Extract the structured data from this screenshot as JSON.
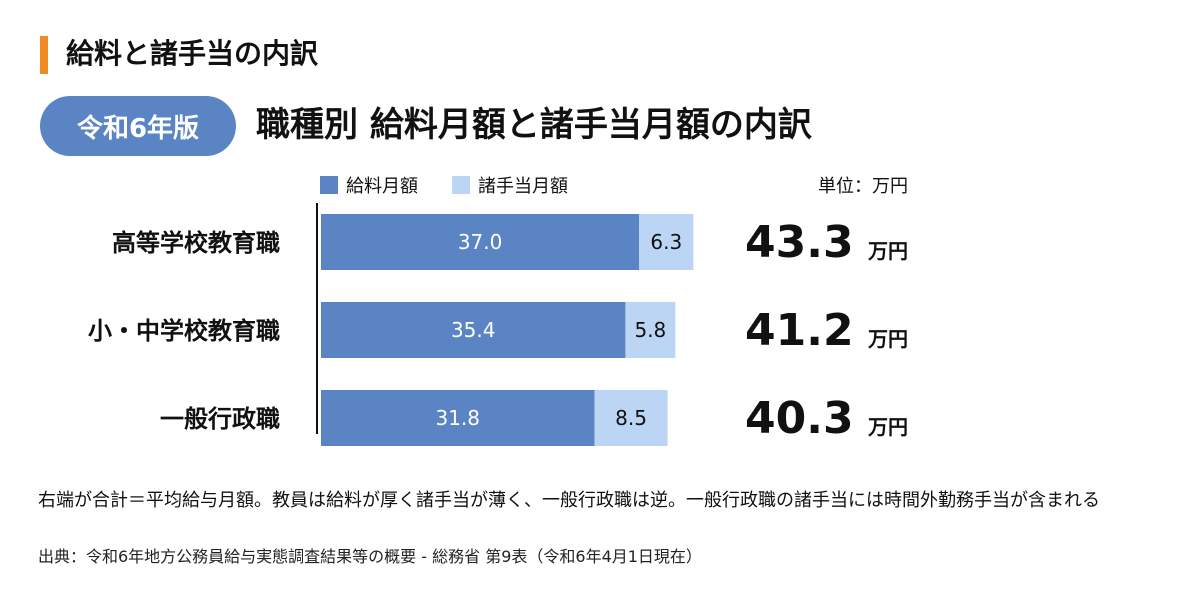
{
  "header": {
    "section_title": "給料と諸手当の内訳",
    "edition_badge": "令和6年版",
    "chart_title": "職種別 給料月額と諸手当月額の内訳"
  },
  "legend": {
    "salary": "給料月額",
    "allowance": "諸手当月額"
  },
  "unit_label": "単位：万円",
  "total_unit": "万円",
  "colors": {
    "accent": "#f08a24",
    "badge": "#5b84c4",
    "salary": "#5b84c4",
    "allowance": "#bcd5f5"
  },
  "chart_data": {
    "type": "bar",
    "orientation": "horizontal",
    "stacked": true,
    "categories": [
      "高等学校教育職",
      "小・中学校教育職",
      "一般行政職"
    ],
    "series": [
      {
        "name": "給料月額",
        "values": [
          37.0,
          35.4,
          31.8
        ],
        "labels": [
          "37.0",
          "35.4",
          "31.8"
        ]
      },
      {
        "name": "諸手当月額",
        "values": [
          6.3,
          5.8,
          8.5
        ],
        "labels": [
          "6.3",
          "5.8",
          "8.5"
        ]
      }
    ],
    "totals": [
      "43.3",
      "41.2",
      "40.3"
    ],
    "legend_position": "top-left",
    "grid": false
  },
  "footer": {
    "note": "右端が合計＝平均給与月額。教員は給料が厚く諸手当が薄く、一般行政職は逆。一般行政職の諸手当には時間外勤務手当が含まれる",
    "source": "出典：令和6年地方公務員給与実態調査結果等の概要 - 総務省 第9表（令和6年4月1日現在）"
  }
}
